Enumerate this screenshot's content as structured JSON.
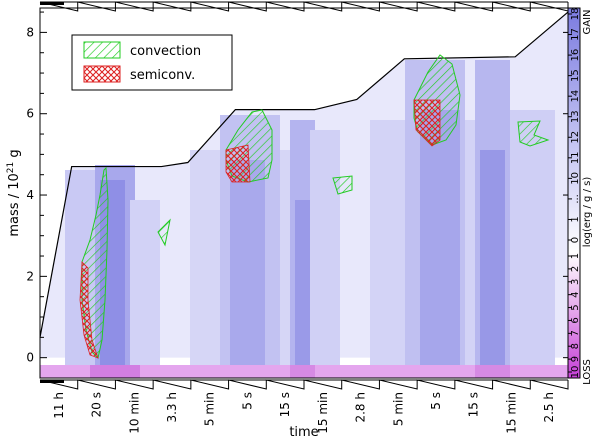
{
  "chart_data": {
    "type": "area",
    "xlabel": "time",
    "ylabel_main": "mass / 10",
    "ylabel_exp": "21",
    "ylabel_unit": " g",
    "ylim": [
      -0.5,
      8.6
    ],
    "y_ticks": [
      0,
      2,
      4,
      6,
      8
    ],
    "x_ticks": [
      "11 h",
      "20 s",
      "10 min",
      "3.3 h",
      "5 min",
      "5 s",
      "15 s",
      "15 min",
      "2.8 h",
      "5 min",
      "5 s",
      "15 s",
      "15 min",
      "2.5 h"
    ],
    "total_mass_profile": [
      {
        "x": 0.0,
        "y": 0.5
      },
      {
        "x": 0.06,
        "y": 4.7
      },
      {
        "x": 0.23,
        "y": 4.7
      },
      {
        "x": 0.28,
        "y": 4.8
      },
      {
        "x": 0.37,
        "y": 6.1
      },
      {
        "x": 0.52,
        "y": 6.1
      },
      {
        "x": 0.6,
        "y": 6.35
      },
      {
        "x": 0.69,
        "y": 7.35
      },
      {
        "x": 0.9,
        "y": 7.4
      },
      {
        "x": 1.0,
        "y": 8.5
      }
    ],
    "colorbar": {
      "label": "log(erg / g / s)",
      "top_label": "GAIN",
      "bottom_label": "LOSS",
      "gain_ticks": [
        "18",
        "17",
        "16",
        "15",
        "14",
        "13",
        "12",
        "11",
        "10",
        "...",
        "1",
        "0"
      ],
      "loss_ticks": [
        "1",
        "2",
        "3",
        "4",
        "5",
        "6",
        "7",
        "8",
        "9",
        "10"
      ]
    },
    "legend": [
      {
        "name": "convection",
        "color": "#22cc22",
        "pattern": "hatch"
      },
      {
        "name": "semiconv.",
        "color": "#dd2222",
        "pattern": "crosshatch"
      }
    ],
    "colors": {
      "gain_light": "#e8e8fb",
      "gain_mid": "#b7b7ef",
      "gain_dark": "#8f8fe6",
      "loss": "#d98ae6",
      "convection": "#22cc22",
      "semiconvection": "#dd2222"
    }
  }
}
